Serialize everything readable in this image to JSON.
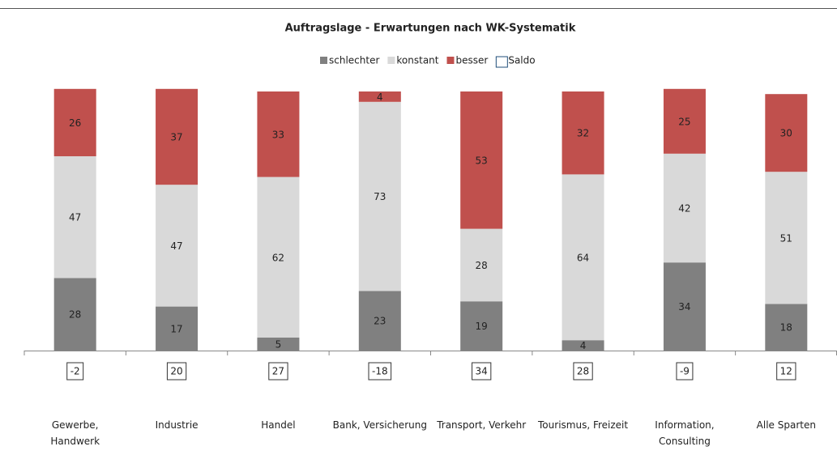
{
  "chart_data": {
    "type": "stacked_bar",
    "title": "Auftragslage - Erwartungen nach WK-Systematik",
    "categories": [
      "Gewerbe,\nHandwerk",
      "Industrie",
      "Handel",
      "Bank, Versicherung",
      "Transport, Verkehr",
      "Tourismus, Freizeit",
      "Information,\nConsulting",
      "Alle Sparten"
    ],
    "series": [
      {
        "name": "schlechter",
        "color": "#808080",
        "values": [
          28,
          17,
          5,
          23,
          19,
          4,
          34,
          18
        ]
      },
      {
        "name": "konstant",
        "color": "#d9d9d9",
        "values": [
          47,
          47,
          62,
          73,
          28,
          64,
          42,
          51
        ]
      },
      {
        "name": "besser",
        "color": "#c0504d",
        "values": [
          26,
          37,
          33,
          4,
          53,
          32,
          25,
          30
        ]
      },
      {
        "name": "Saldo",
        "color": "#1f4e79",
        "values": [
          -2,
          20,
          27,
          -18,
          34,
          28,
          -9,
          12
        ]
      }
    ],
    "legend": "top"
  }
}
